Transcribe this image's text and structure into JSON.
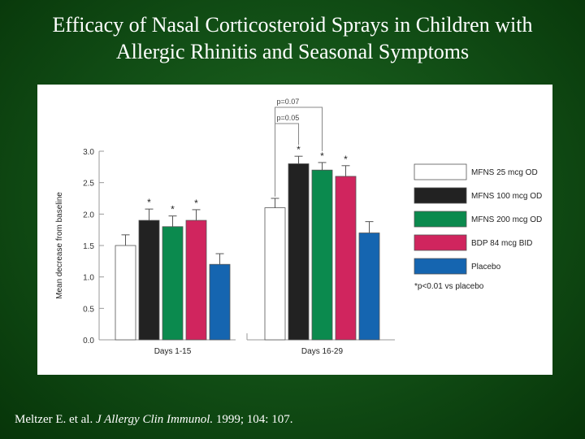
{
  "slide": {
    "title_line1": "Efficacy of Nasal Corticosteroid Sprays in Children with",
    "title_line2": "Allergic Rhinitis and Seasonal Symptoms",
    "citation_authors": "Meltzer E. et al.",
    "citation_journal": "J Allergy Clin Immunol.",
    "citation_ref": "1999; 104: 107.",
    "background_color": "#114d15"
  },
  "chart_data": {
    "type": "bar",
    "title": "",
    "xlabel": "",
    "ylabel": "Mean decrease from baseline",
    "ylim": [
      0,
      3.0
    ],
    "yticks": [
      "0.0",
      "0.5",
      "1.0",
      "1.5",
      "2.0",
      "2.5",
      "3.0"
    ],
    "grid": false,
    "legend_position": "right",
    "categories": [
      "Days 1-15",
      "Days 16-29"
    ],
    "series": [
      {
        "name": "MFNS 25 mcg OD",
        "color": "#ffffff",
        "values": [
          1.5,
          2.1
        ],
        "errors": [
          0.17,
          0.15
        ],
        "significant": [
          false,
          false
        ]
      },
      {
        "name": "MFNS 100 mcg OD",
        "color": "#222222",
        "values": [
          1.9,
          2.8
        ],
        "errors": [
          0.18,
          0.12
        ],
        "significant": [
          true,
          true
        ]
      },
      {
        "name": "MFNS 200 mcg OD",
        "color": "#0b8a4e",
        "values": [
          1.8,
          2.7
        ],
        "errors": [
          0.17,
          0.12
        ],
        "significant": [
          true,
          true
        ]
      },
      {
        "name": "BDP 84 mcg BID",
        "color": "#d0255e",
        "values": [
          1.9,
          2.6
        ],
        "errors": [
          0.17,
          0.17
        ],
        "significant": [
          true,
          true
        ]
      },
      {
        "name": "Placebo",
        "color": "#1565b0",
        "values": [
          1.2,
          1.7
        ],
        "errors": [
          0.17,
          0.18
        ],
        "significant": [
          false,
          false
        ]
      }
    ],
    "significance_marker": "*",
    "footnote": "*p<0.01 vs placebo",
    "brackets": [
      {
        "label": "p=0.07",
        "from_series": 0,
        "to_series": 2,
        "category": 1
      },
      {
        "label": "p=0.05",
        "from_series": 0,
        "to_series": 1,
        "category": 1
      }
    ]
  }
}
